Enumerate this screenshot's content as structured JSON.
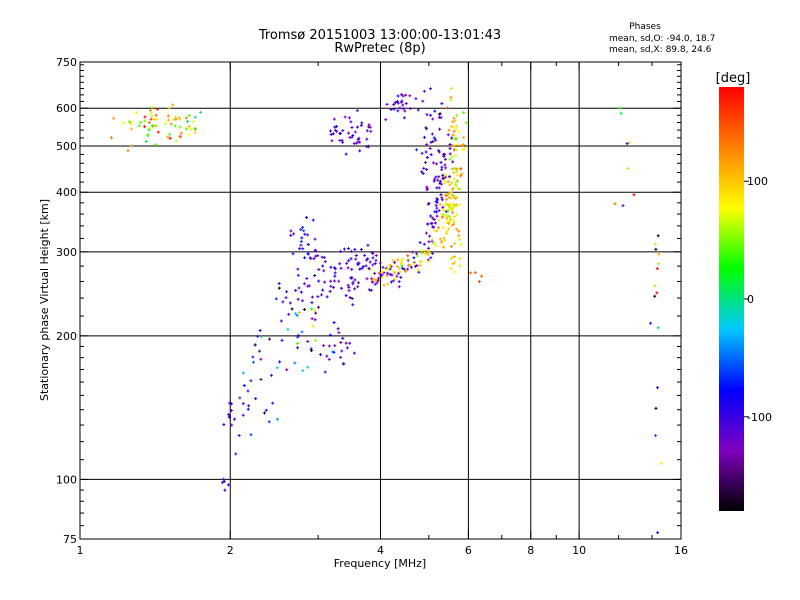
{
  "chart_data": {
    "type": "scatter",
    "title": "Tromsø 20151003 13:00:00-13:01:43",
    "subtitle": "RwPretec (8p)",
    "xlabel": "Frequency [MHz]",
    "ylabel": "Stationary phase Virtual Height [km]",
    "x_scale": "log",
    "y_scale": "log",
    "xlim": [
      1,
      16
    ],
    "ylim": [
      75,
      750
    ],
    "x_ticks": [
      1,
      2,
      4,
      6,
      8,
      10,
      16
    ],
    "x_tick_labels": [
      "1",
      "2",
      "4",
      "6",
      "8",
      "10",
      "16"
    ],
    "x_minor_ticks": [
      3,
      5,
      7,
      9,
      12,
      14
    ],
    "y_ticks": [
      75,
      100,
      200,
      300,
      400,
      500,
      600,
      750
    ],
    "y_tick_labels": [
      "75",
      "100",
      "200",
      "300",
      "400",
      "500",
      "600",
      "750"
    ],
    "x_grid": [
      2,
      4,
      6,
      8,
      10
    ],
    "y_grid": [
      100,
      200,
      300,
      400,
      500,
      600
    ],
    "grid": true,
    "stats": {
      "heading": "Phases",
      "line_o": "mean, sd,O: -94.0, 18.7",
      "line_x": "mean, sd,X:  89.8, 24.6"
    },
    "colorbar": {
      "label": "[deg]",
      "range": [
        -180,
        180
      ],
      "ticks": [
        100,
        0,
        -100
      ],
      "tick_labels": [
        "100",
        "0",
        "-100"
      ],
      "colormap": [
        "#000000",
        "#8000c0",
        "#0000ff",
        "#00c8ff",
        "#00ff00",
        "#ffff00",
        "#ff8000",
        "#ff0000"
      ]
    },
    "clusters": [
      {
        "x": 1.45,
        "y": 555,
        "sx": 0.18,
        "sy": 25,
        "n": 70,
        "phase": 90,
        "sphase": 40
      },
      {
        "x": 1.95,
        "y": 97,
        "sx": 0.02,
        "sy": 3,
        "n": 5,
        "phase": -90,
        "sphase": 10
      },
      {
        "x": 2.0,
        "y": 130,
        "sx": 0.05,
        "sy": 10,
        "n": 12,
        "phase": -100,
        "sphase": 15
      },
      {
        "x": 2.3,
        "y": 160,
        "sx": 0.12,
        "sy": 20,
        "n": 25,
        "phase": -100,
        "sphase": 30
      },
      {
        "x": 2.8,
        "y": 200,
        "sx": 0.2,
        "sy": 20,
        "n": 40,
        "phase": -60,
        "sphase": 80
      },
      {
        "x": 3.3,
        "y": 190,
        "sx": 0.15,
        "sy": 10,
        "n": 18,
        "phase": -120,
        "sphase": 20
      },
      {
        "x": 2.85,
        "y": 300,
        "sx": 0.1,
        "sy": 25,
        "n": 25,
        "phase": -100,
        "sphase": 20
      },
      {
        "x": 3.6,
        "y": 285,
        "sx": 0.2,
        "sy": 10,
        "n": 35,
        "phase": -110,
        "sphase": 15
      },
      {
        "x": 3.5,
        "y": 530,
        "sx": 0.2,
        "sy": 25,
        "n": 45,
        "phase": -110,
        "sphase": 15
      },
      {
        "x": 4.3,
        "y": 615,
        "sx": 0.2,
        "sy": 20,
        "n": 25,
        "phase": -110,
        "sphase": 15
      },
      {
        "x": 5.1,
        "y": 480,
        "sx": 0.15,
        "sy": 80,
        "n": 60,
        "phase": -110,
        "sphase": 20
      },
      {
        "x": 5.55,
        "y": 350,
        "sx": 0.15,
        "sy": 50,
        "n": 70,
        "phase": 95,
        "sphase": 25
      },
      {
        "x": 5.6,
        "y": 530,
        "sx": 0.1,
        "sy": 50,
        "n": 25,
        "phase": 100,
        "sphase": 30
      },
      {
        "x": 6.3,
        "y": 270,
        "sx": 0.2,
        "sy": 10,
        "n": 4,
        "phase": 150,
        "sphase": 10
      },
      {
        "x": 12.5,
        "y": 500,
        "sx": 0.4,
        "sy": 70,
        "n": 8,
        "phase": 60,
        "sphase": 90
      },
      {
        "x": 14.3,
        "y": 240,
        "sx": 0.2,
        "sy": 60,
        "n": 12,
        "phase": 0,
        "sphase": 150
      },
      {
        "x": 14.3,
        "y": 110,
        "sx": 0.1,
        "sy": 25,
        "n": 4,
        "phase": -90,
        "sphase": 40
      }
    ],
    "curves": [
      {
        "x": [
          2.5,
          3.0,
          3.5,
          4.0,
          4.5,
          4.8,
          5.0,
          5.2,
          5.35,
          5.5
        ],
        "y": [
          240,
          245,
          255,
          265,
          275,
          290,
          320,
          370,
          440,
          520
        ],
        "n": 130,
        "spread": 0.035,
        "phase": -110,
        "sphase": 15
      },
      {
        "x": [
          3.8,
          4.2,
          4.6,
          5.0,
          5.3,
          5.5,
          5.65,
          5.75,
          5.85
        ],
        "y": [
          260,
          272,
          285,
          300,
          330,
          370,
          420,
          480,
          560
        ],
        "n": 110,
        "spread": 0.03,
        "phase": 90,
        "sphase": 25
      },
      {
        "x": [
          2.7,
          2.9,
          3.1,
          3.3,
          3.6
        ],
        "y": [
          330,
          300,
          280,
          260,
          235
        ],
        "n": 30,
        "spread": 0.04,
        "phase": -110,
        "sphase": 15
      }
    ]
  }
}
